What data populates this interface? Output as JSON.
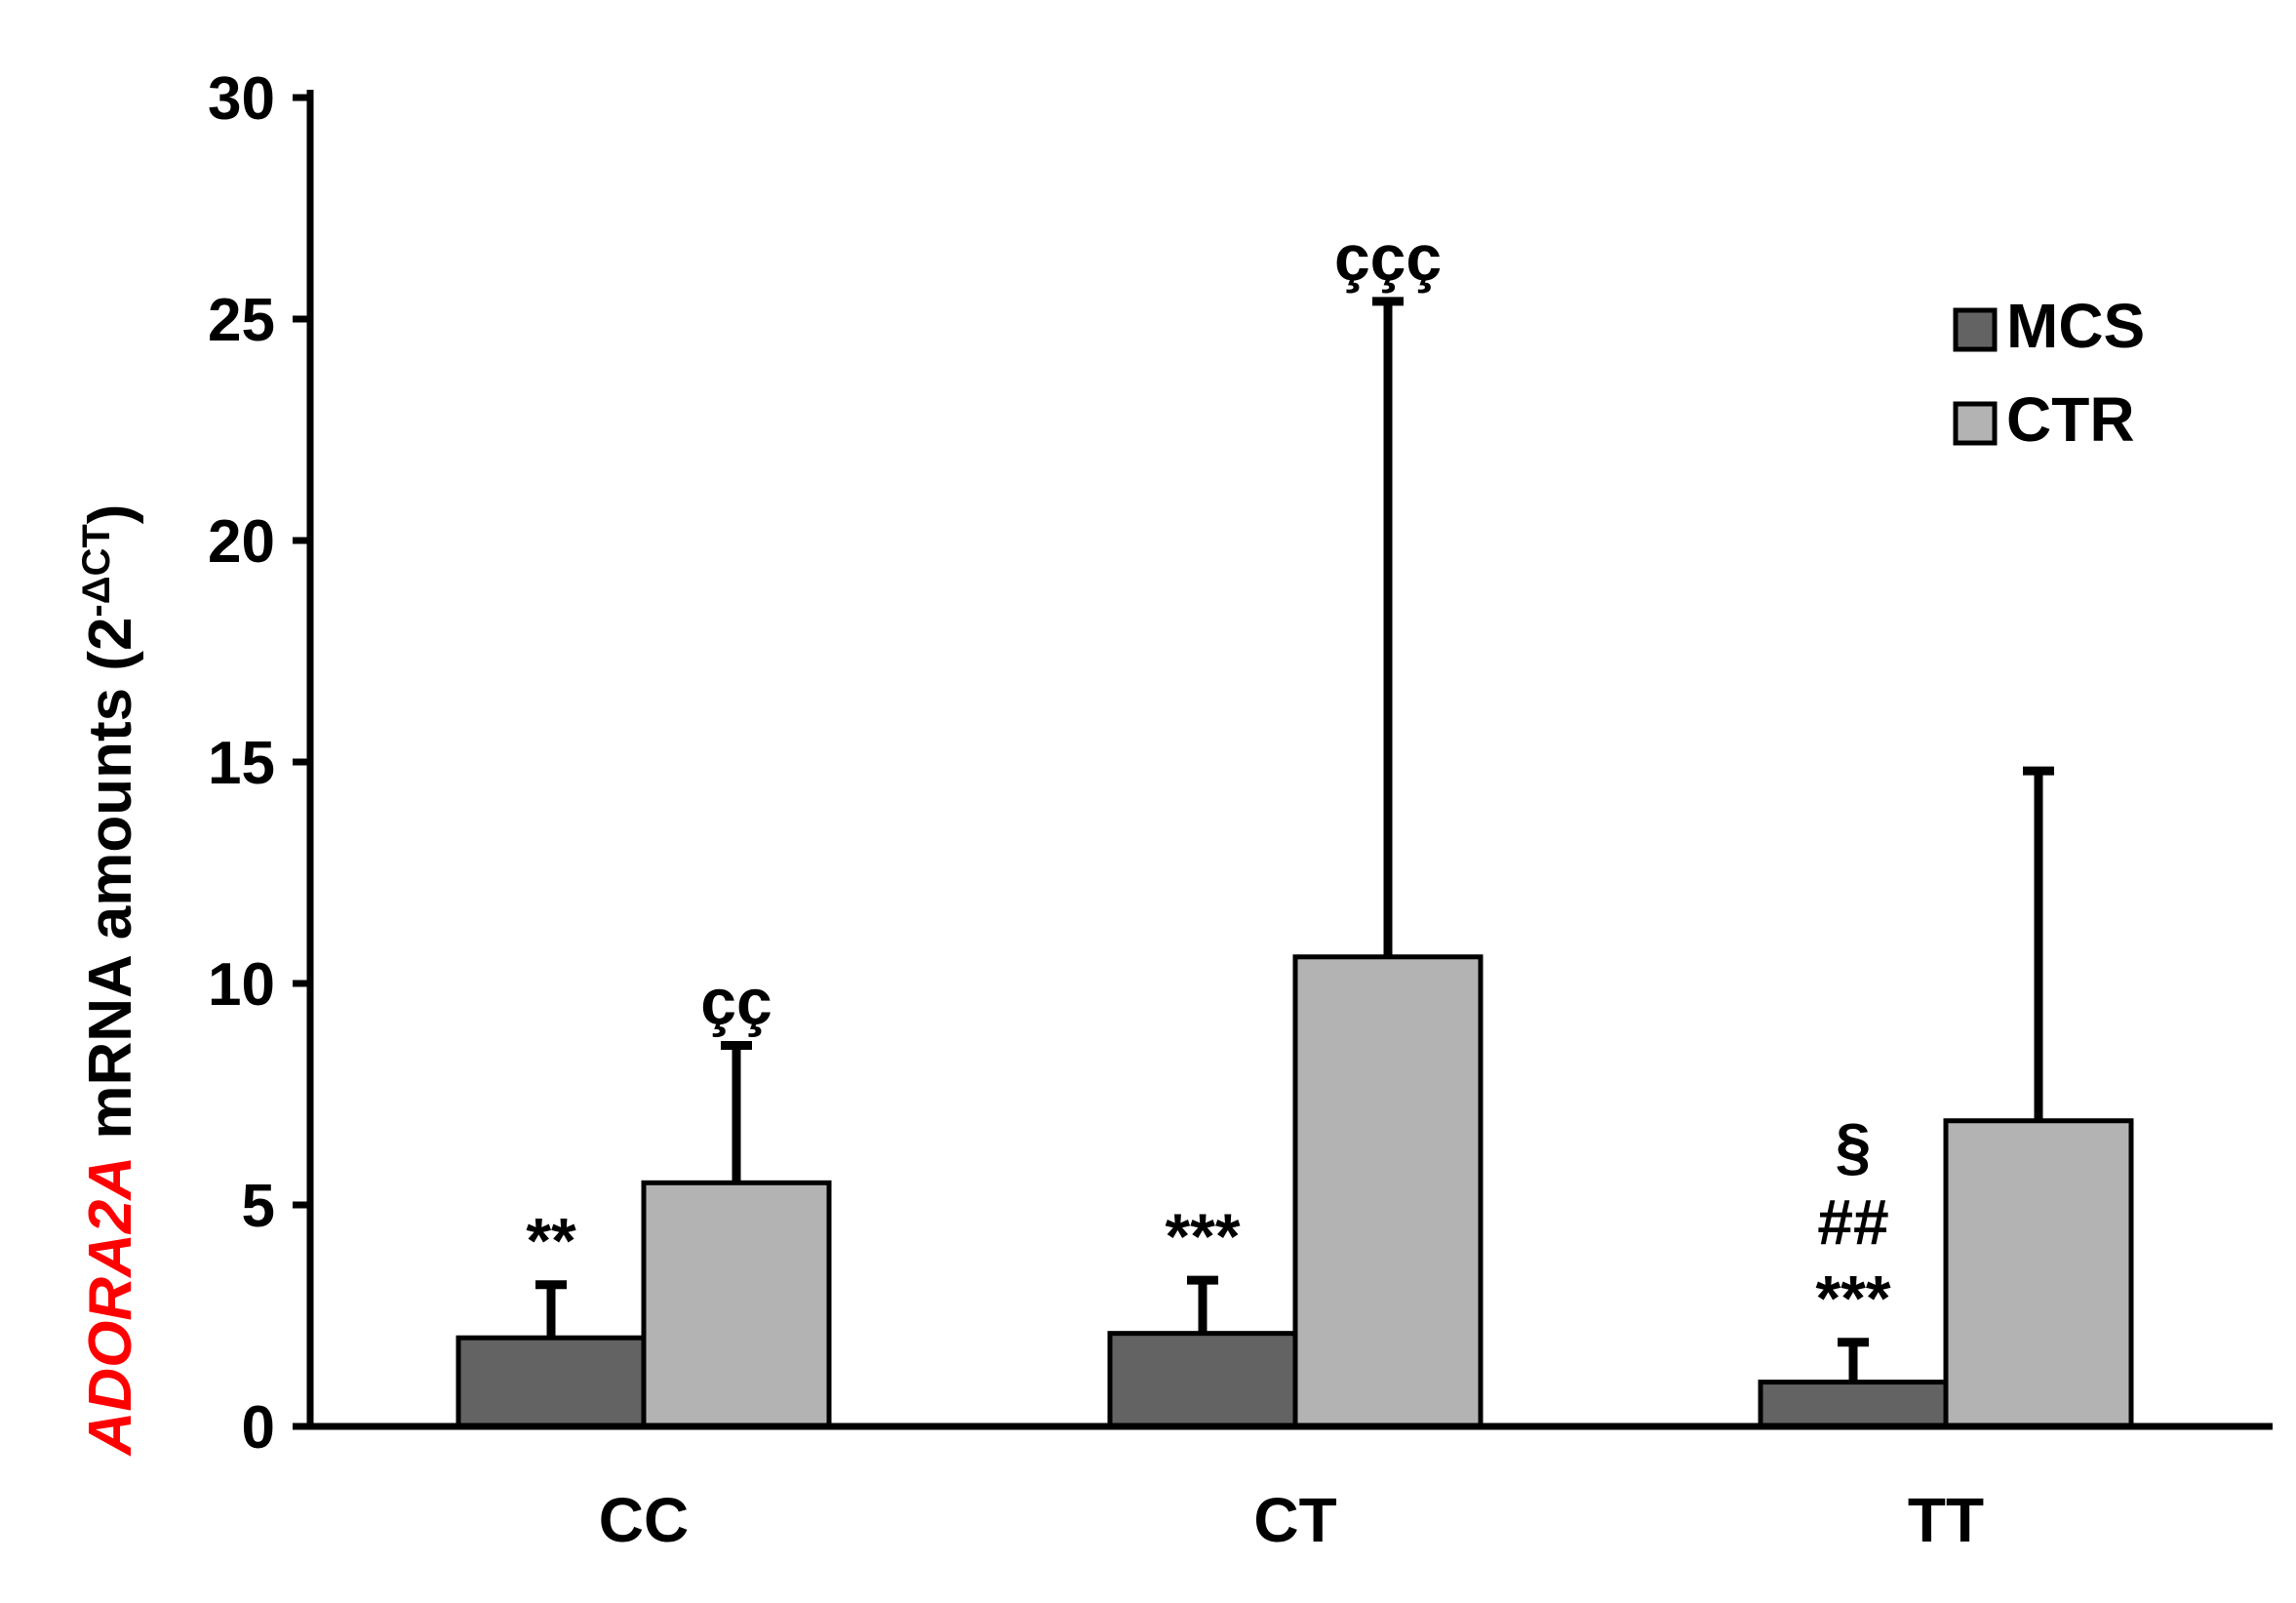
{
  "chart_data": {
    "type": "bar",
    "title": "",
    "xlabel": "",
    "ylabel": {
      "gene": "ADORA2A",
      "text": " mRNA amounts (2",
      "superscript": "-ΔCT",
      "close": ")"
    },
    "ylim": [
      0,
      30
    ],
    "yticks": [
      "0",
      "5",
      "10",
      "15",
      "20",
      "25",
      "30"
    ],
    "categories": [
      "CC",
      "CT",
      "TT"
    ],
    "series": [
      {
        "name": "MCS",
        "color": "#636363",
        "values": [
          2.0,
          2.1,
          1.0
        ],
        "errors": [
          1.2,
          1.2,
          0.9
        ],
        "annotations": [
          [
            "**"
          ],
          [
            "***"
          ],
          [
            "§",
            "##",
            "***"
          ]
        ]
      },
      {
        "name": "CTR",
        "color": "#b3b3b3",
        "values": [
          5.5,
          10.6,
          6.9
        ],
        "errors": [
          3.1,
          14.8,
          7.9
        ],
        "annotations": [
          [
            "çç"
          ],
          [
            "ççç"
          ],
          []
        ]
      }
    ],
    "legend": {
      "position": "top-right",
      "entries": [
        "MCS",
        "CTR"
      ]
    },
    "grid": false,
    "error_bars": "positive-only"
  },
  "colors": {
    "ylabel_gene": "#ff0000",
    "axis": "#000000",
    "bar_edge": "#000000"
  }
}
